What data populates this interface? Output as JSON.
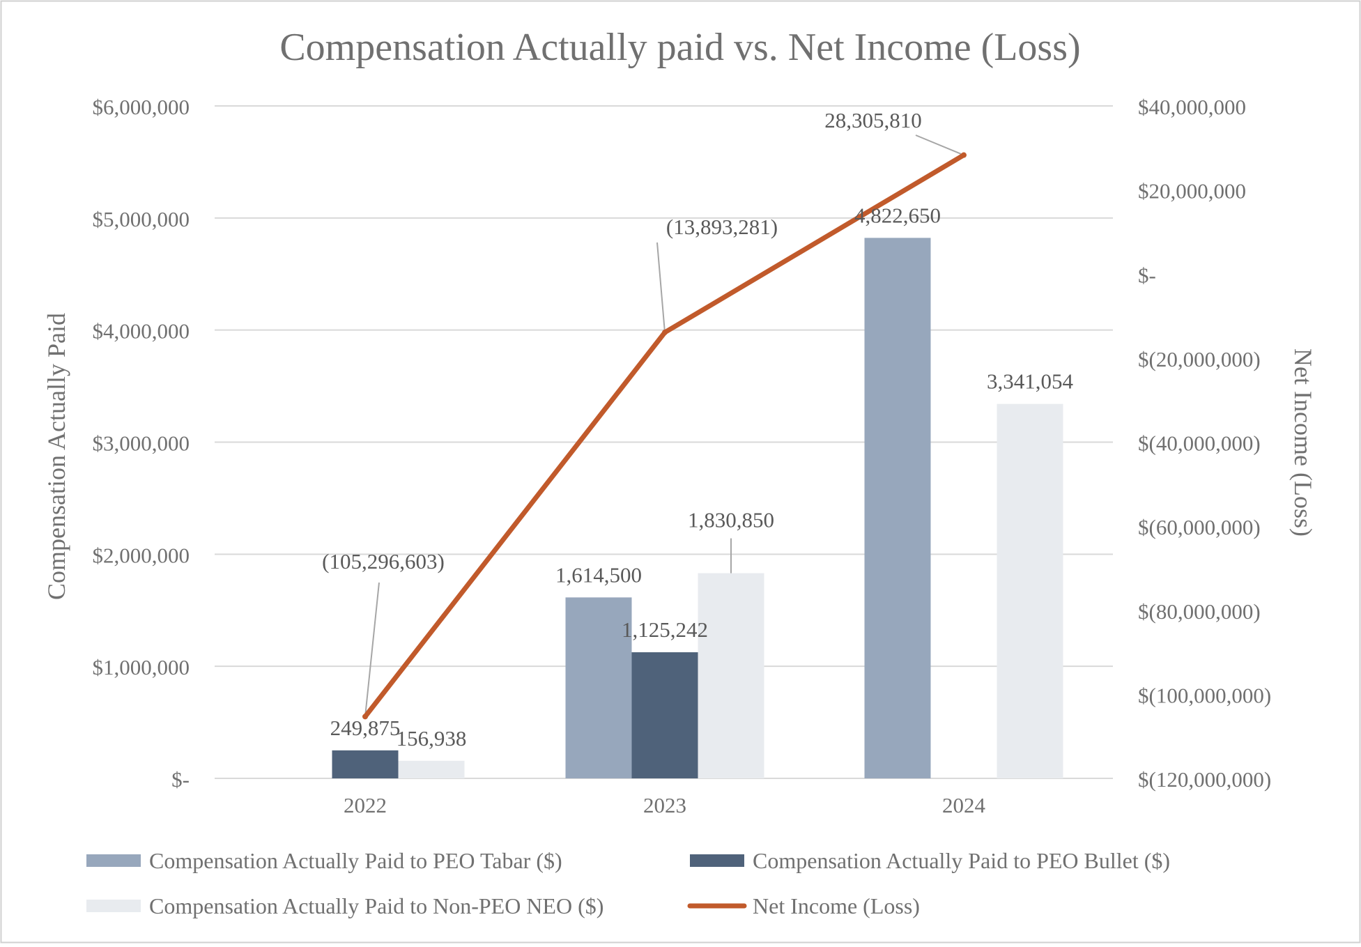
{
  "chart_data": {
    "type": "bar",
    "title": "Compensation Actually paid vs. Net Income (Loss)",
    "ylabel": "Compensation Actually Paid",
    "y2label": "Net Income (Loss)",
    "xlabel": "",
    "categories": [
      "2022",
      "2023",
      "2024"
    ],
    "ylim": [
      0,
      6000000
    ],
    "y2lim": [
      -120000000,
      40000000
    ],
    "y_ticks": [
      {
        "value": 0,
        "label": "$-"
      },
      {
        "value": 1000000,
        "label": "$1,000,000"
      },
      {
        "value": 2000000,
        "label": "$2,000,000"
      },
      {
        "value": 3000000,
        "label": "$3,000,000"
      },
      {
        "value": 4000000,
        "label": "$4,000,000"
      },
      {
        "value": 5000000,
        "label": "$5,000,000"
      },
      {
        "value": 6000000,
        "label": "$6,000,000"
      }
    ],
    "y2_ticks": [
      {
        "value": -120000000,
        "label": "$(120,000,000)"
      },
      {
        "value": -100000000,
        "label": "$(100,000,000)"
      },
      {
        "value": -80000000,
        "label": "$(80,000,000)"
      },
      {
        "value": -60000000,
        "label": "$(60,000,000)"
      },
      {
        "value": -40000000,
        "label": "$(40,000,000)"
      },
      {
        "value": -20000000,
        "label": "$(20,000,000)"
      },
      {
        "value": 0,
        "label": "$-"
      },
      {
        "value": 20000000,
        "label": "$20,000,000"
      },
      {
        "value": 40000000,
        "label": "$40,000,000"
      }
    ],
    "series": [
      {
        "name": "Compensation Actually Paid to PEO Tabar ($)",
        "color": "#97a7bc",
        "values": [
          null,
          1614500,
          4822650
        ],
        "labels": [
          "",
          "1,614,500",
          "4,822,650"
        ]
      },
      {
        "name": "Compensation Actually Paid to PEO Bullet ($)",
        "color": "#4f627a",
        "values": [
          249875,
          1125242,
          null
        ],
        "labels": [
          "249,875",
          "1,125,242",
          ""
        ]
      },
      {
        "name": "Compensation Actually Paid to Non-PEO NEO ($)",
        "color": "#e8ebef",
        "values": [
          156938,
          1830850,
          3341054
        ],
        "labels": [
          "156,938",
          "1,830,850",
          "3,341,054"
        ]
      }
    ],
    "line_series": {
      "name": "Net Income (Loss)",
      "color": "#c15a2b",
      "axis": "right",
      "values": [
        -105296603,
        -13893281,
        28305810
      ],
      "labels": [
        "(105,296,603)",
        "(13,893,281)",
        "28,305,810"
      ]
    },
    "legend": "bottom",
    "grid": true
  }
}
